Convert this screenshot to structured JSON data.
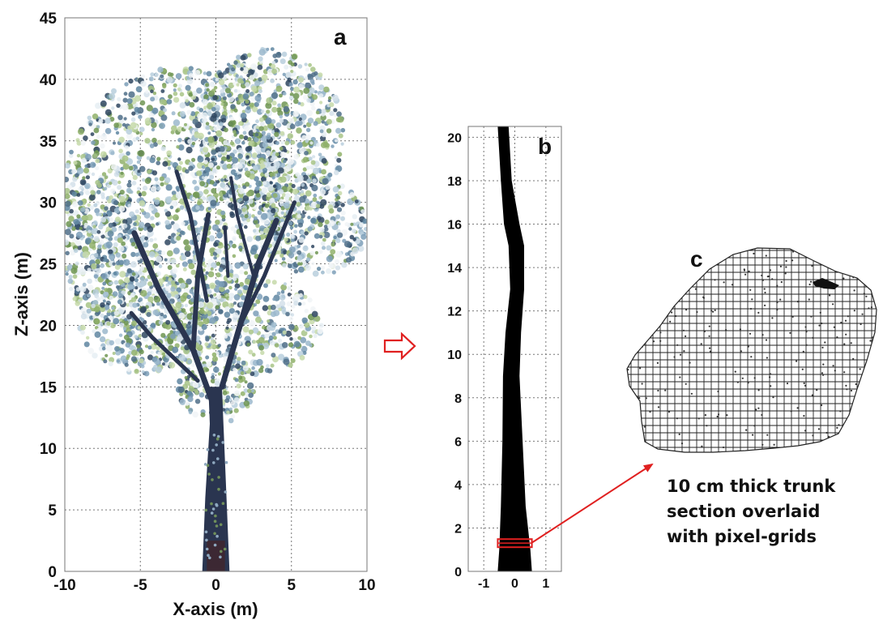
{
  "chart_data": [
    {
      "panel": "a",
      "type": "scatter",
      "title": "",
      "xlabel": "X-axis (m)",
      "ylabel": "Z-axis (m)",
      "xlim": [
        -10,
        10
      ],
      "ylim": [
        0,
        45
      ],
      "xticks": [
        "-10",
        "-5",
        "0",
        "5",
        "10"
      ],
      "yticks": [
        "0",
        "5",
        "10",
        "15",
        "20",
        "25",
        "30",
        "35",
        "40",
        "45"
      ],
      "grid": true,
      "description_label": "a",
      "colors": {
        "canopy_light": "#dfe8ee",
        "canopy_green": "#8fb06a",
        "canopy_blue": "#6f93ad",
        "trunk": "#2a3550"
      }
    },
    {
      "panel": "b",
      "type": "area",
      "title": "",
      "xlabel": "",
      "ylabel": "",
      "xlim": [
        -1.5,
        1.5
      ],
      "ylim": [
        0,
        20.5
      ],
      "xticks": [
        "-1",
        "0",
        "1"
      ],
      "yticks": [
        "0",
        "2",
        "4",
        "6",
        "8",
        "10",
        "12",
        "14",
        "16",
        "18",
        "20"
      ],
      "grid": true,
      "description_label": "b",
      "highlight_section_z": 1.3,
      "colors": {
        "trunk": "#000000",
        "highlight": "#e02020"
      }
    },
    {
      "panel": "c",
      "type": "heatmap",
      "description_label": "c",
      "caption_lines": [
        "10 cm thick trunk",
        "section overlaid",
        "with pixel-grids"
      ]
    }
  ],
  "arrow_color": "#e02020"
}
